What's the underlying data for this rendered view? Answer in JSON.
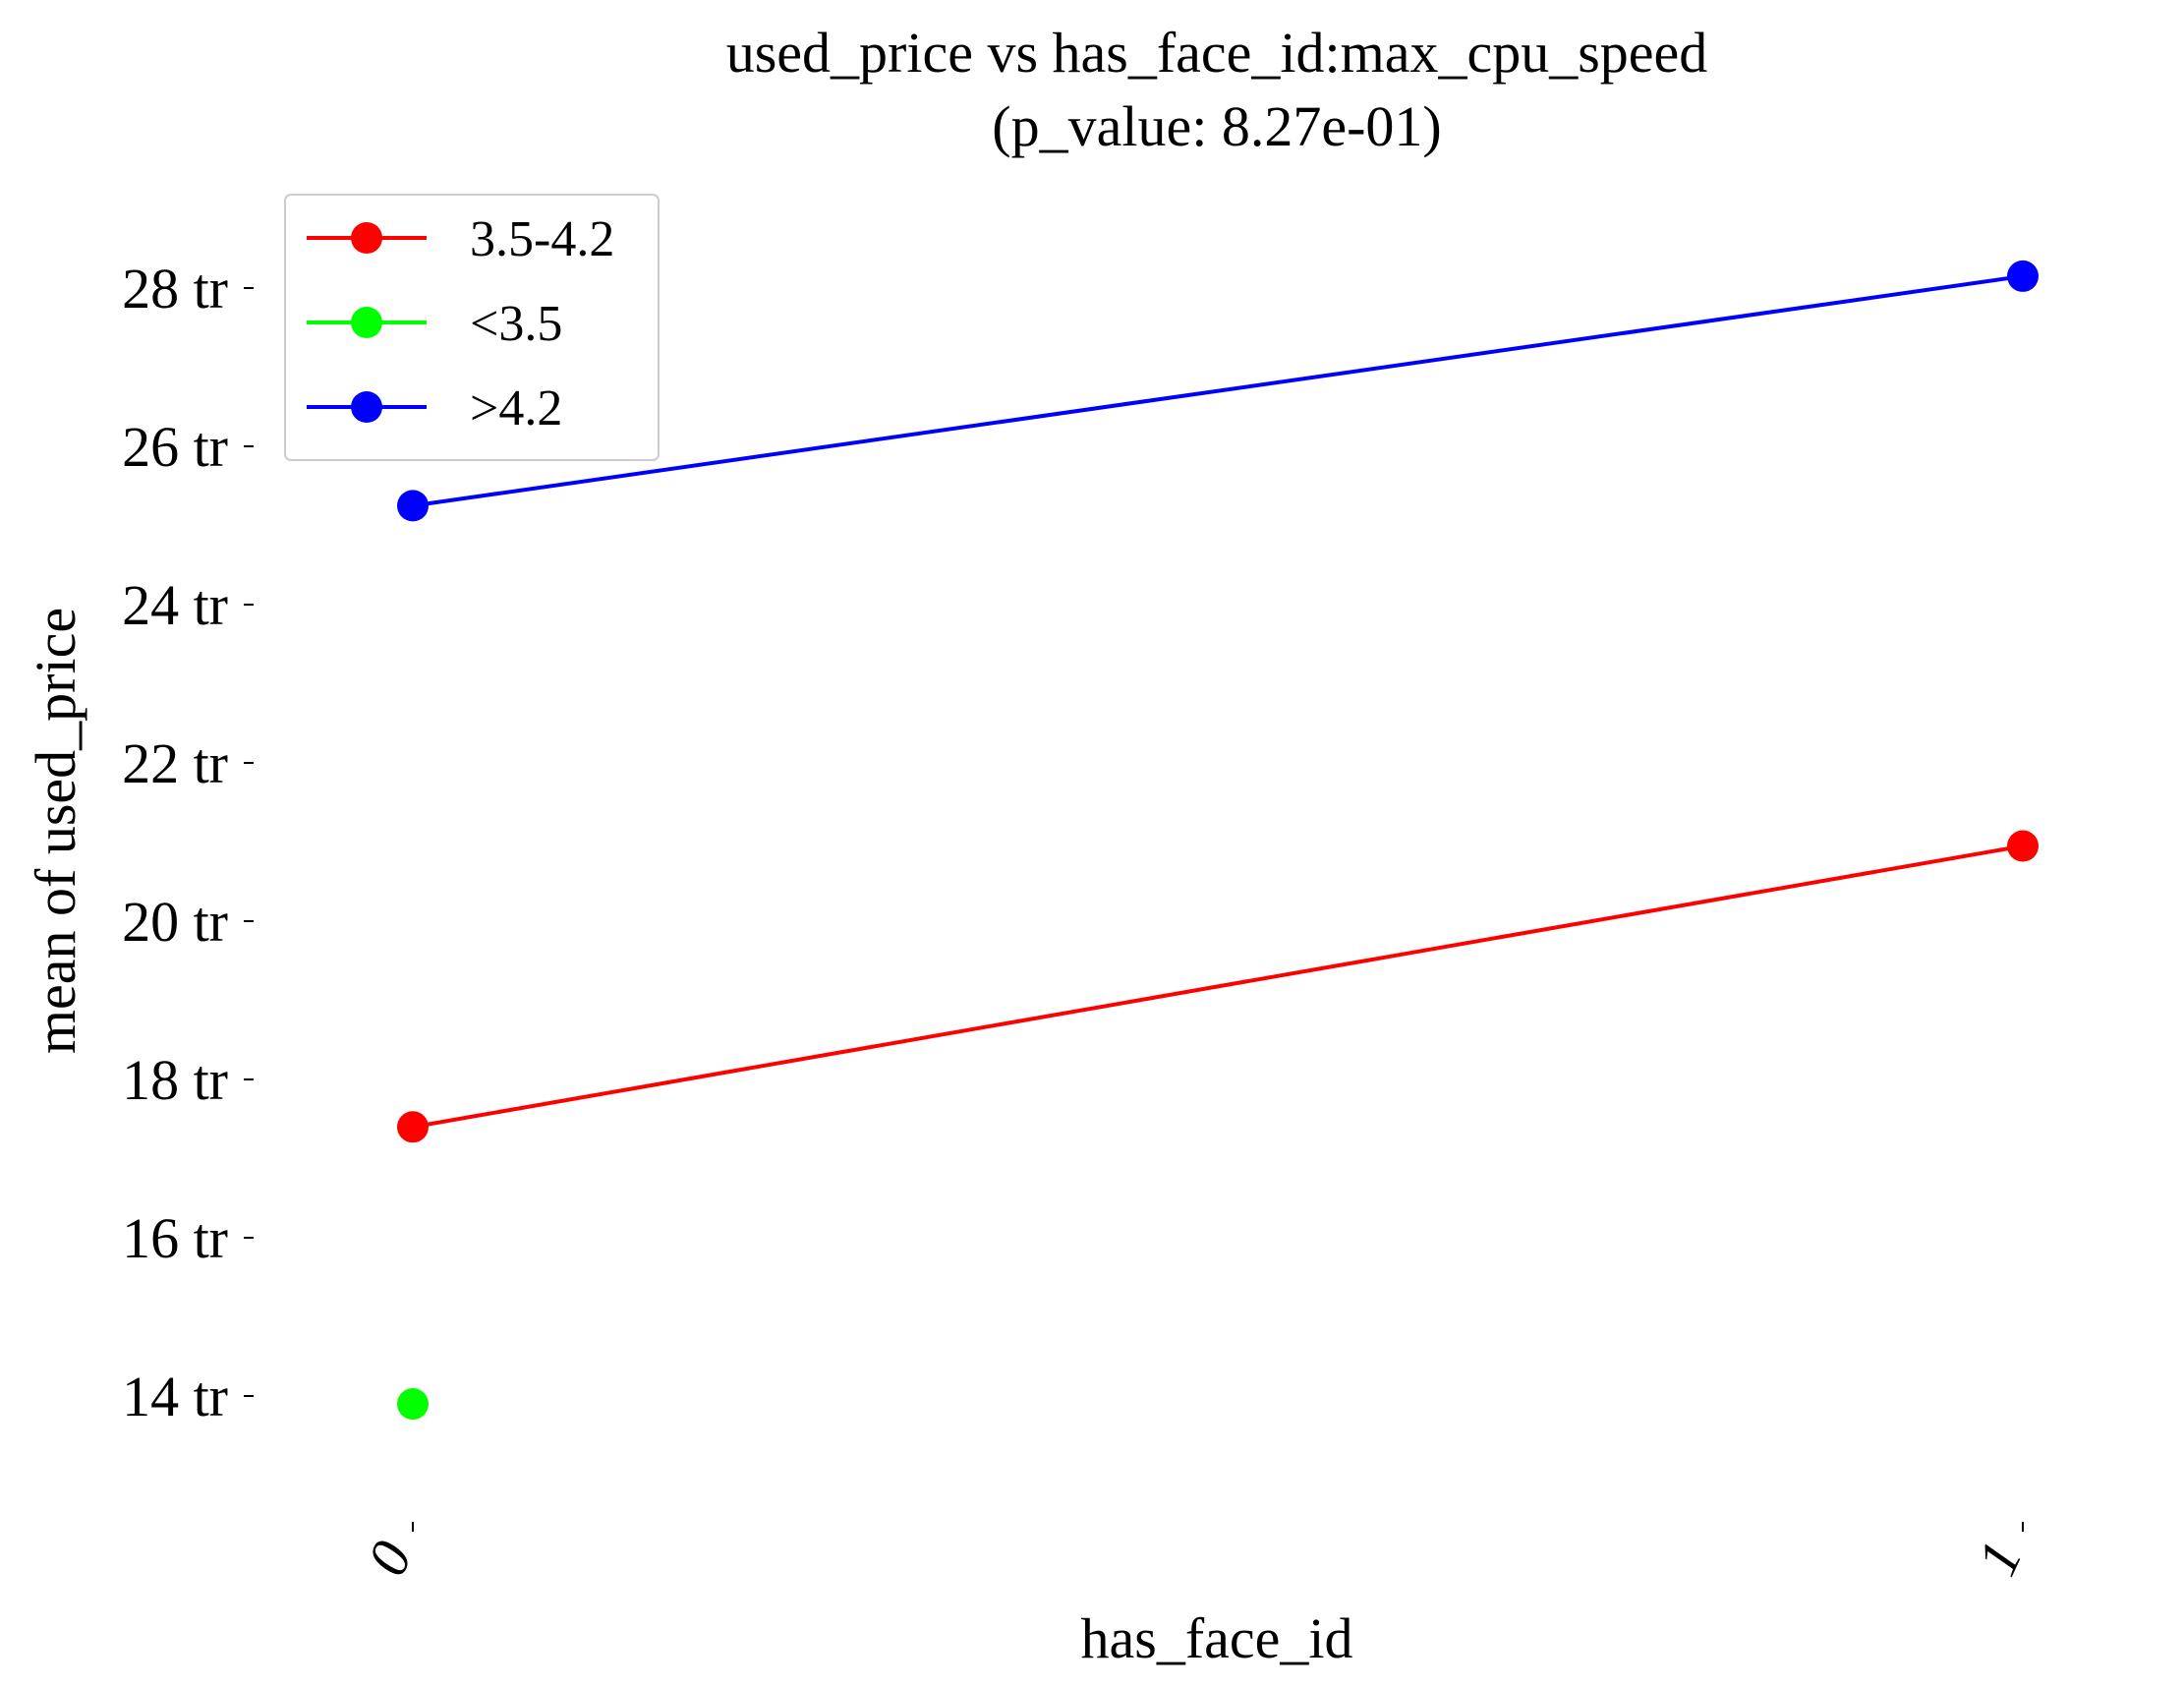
{
  "chart_data": {
    "type": "line",
    "title": "used_price vs has_face_id:max_cpu_speed",
    "subtitle": "(p_value: 8.27e-01)",
    "xlabel": "has_face_id",
    "ylabel": "mean of used_price",
    "categories": [
      "0",
      "1"
    ],
    "ylim": [
      12.5,
      29.5
    ],
    "y_ticks": [
      14,
      16,
      18,
      20,
      22,
      24,
      26,
      28
    ],
    "y_tick_labels": [
      "14 tr",
      "16 tr",
      "18 tr",
      "20 tr",
      "22 tr",
      "24 tr",
      "26 tr",
      "28 tr"
    ],
    "grid": false,
    "legend_position": "top-left",
    "series": [
      {
        "name": "3.5-4.2",
        "color": "#ff0000",
        "values": [
          17.4,
          20.95
        ]
      },
      {
        "name": "<3.5",
        "color": "#00ff00",
        "values": [
          13.9,
          null
        ]
      },
      {
        "name": ">4.2",
        "color": "#0000ff",
        "values": [
          25.25,
          28.15
        ]
      }
    ]
  }
}
